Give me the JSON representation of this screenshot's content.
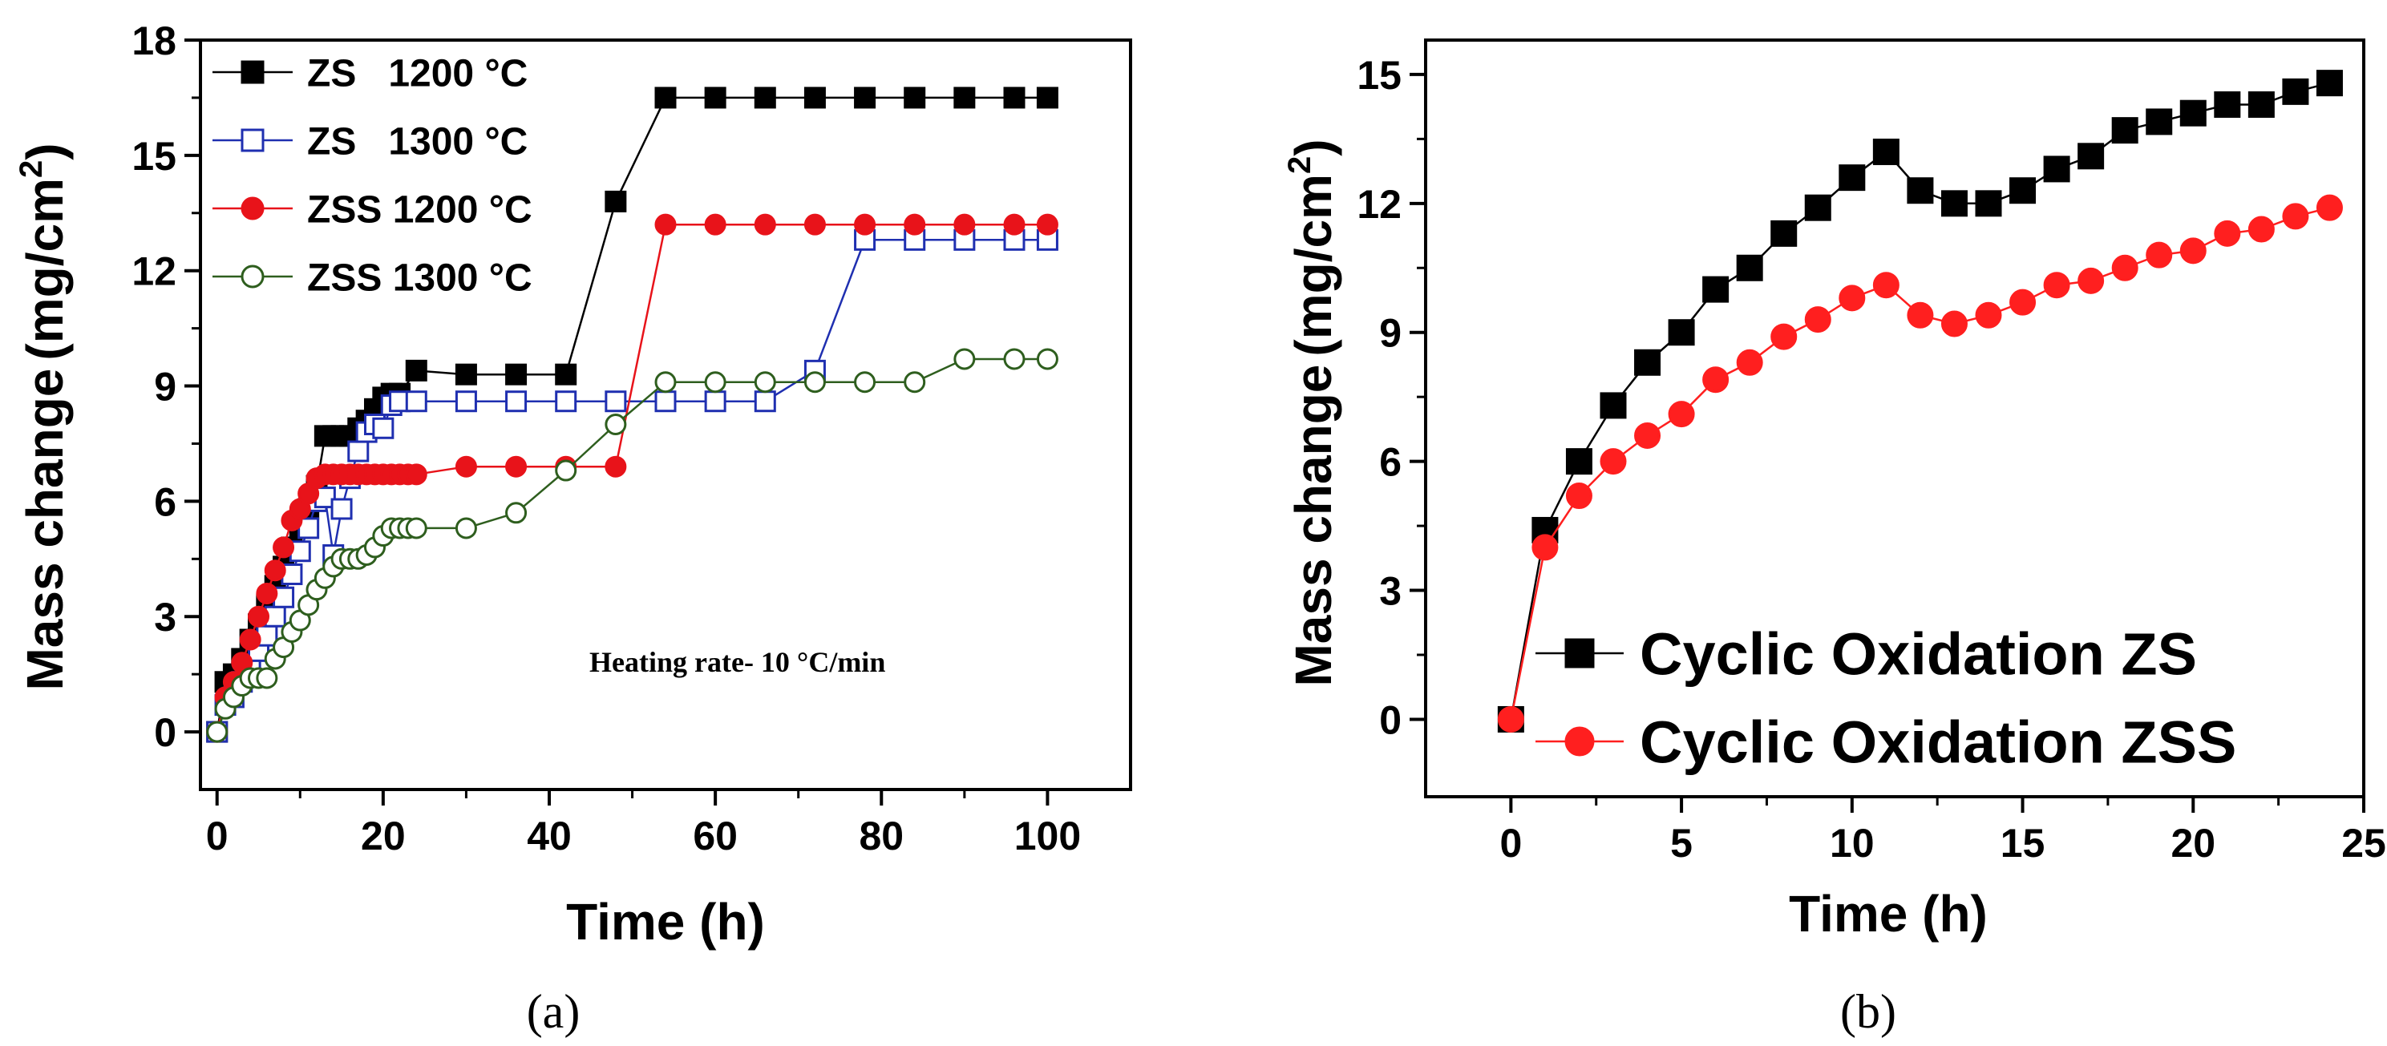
{
  "chart_data": [
    {
      "type": "line",
      "panel_label": "(a)",
      "xlabel": "Time (h)",
      "ylabel_main": "Mass change",
      "ylabel_unit": "(mg/cm",
      "ylabel_sup": "2",
      "ylabel_close": ")",
      "xlim": [
        -2,
        110
      ],
      "ylim": [
        -1.5,
        18
      ],
      "xticks": [
        0,
        20,
        40,
        60,
        80,
        100
      ],
      "yticks": [
        0,
        3,
        6,
        9,
        12,
        15,
        18
      ],
      "annotation": "Heating rate- 10 °C/min",
      "legend_position": "top-left",
      "series": [
        {
          "name": "ZS   1200 °C",
          "color": "#000000",
          "marker": "square-filled",
          "x": [
            0,
            1,
            2,
            3,
            4,
            5,
            6,
            7,
            8,
            9,
            10,
            11,
            12,
            13,
            14,
            15,
            16,
            17,
            18,
            19,
            20,
            21,
            22,
            24,
            30,
            36,
            42,
            48,
            54,
            60,
            66,
            72,
            78,
            84,
            90,
            96,
            100
          ],
          "y": [
            0,
            1.3,
            1.5,
            1.9,
            2.4,
            2.8,
            3.3,
            3.8,
            4.3,
            4.8,
            5.3,
            5.8,
            6.4,
            7.7,
            7.7,
            7.7,
            7.7,
            7.9,
            8.1,
            8.4,
            8.7,
            8.8,
            8.8,
            9.4,
            9.3,
            9.3,
            9.3,
            13.8,
            16.5,
            16.5,
            16.5,
            16.5,
            16.5,
            16.5,
            16.5,
            16.5,
            16.5
          ]
        },
        {
          "name": "ZS   1300 °C",
          "color": "#1f2fb0",
          "marker": "square-open",
          "x": [
            0,
            1,
            2,
            3,
            4,
            5,
            6,
            7,
            8,
            9,
            10,
            11,
            12,
            13,
            14,
            15,
            16,
            17,
            18,
            19,
            20,
            21,
            22,
            24,
            30,
            36,
            42,
            48,
            54,
            60,
            66,
            72,
            78,
            84,
            90,
            96,
            100
          ],
          "y": [
            0,
            0.7,
            0.9,
            1.3,
            1.7,
            2.1,
            2.5,
            3.0,
            3.5,
            4.1,
            4.7,
            5.3,
            6.0,
            6.1,
            4.6,
            5.8,
            6.6,
            7.3,
            7.8,
            8.0,
            7.9,
            8.5,
            8.6,
            8.6,
            8.6,
            8.6,
            8.6,
            8.6,
            8.6,
            8.6,
            8.6,
            9.4,
            12.8,
            12.8,
            12.8,
            12.8,
            12.8
          ]
        },
        {
          "name": "ZSS 1200 °C",
          "color": "#e8131a",
          "marker": "circle-filled",
          "x": [
            0,
            1,
            2,
            3,
            4,
            5,
            6,
            7,
            8,
            9,
            10,
            11,
            12,
            13,
            14,
            15,
            16,
            17,
            18,
            19,
            20,
            21,
            22,
            23,
            24,
            30,
            36,
            42,
            48,
            54,
            60,
            66,
            72,
            78,
            84,
            90,
            96,
            100
          ],
          "y": [
            0,
            0.9,
            1.3,
            1.8,
            2.4,
            3.0,
            3.6,
            4.2,
            4.8,
            5.5,
            5.8,
            6.2,
            6.6,
            6.7,
            6.7,
            6.7,
            6.7,
            6.7,
            6.7,
            6.7,
            6.7,
            6.7,
            6.7,
            6.7,
            6.7,
            6.9,
            6.9,
            6.9,
            6.9,
            13.2,
            13.2,
            13.2,
            13.2,
            13.2,
            13.2,
            13.2,
            13.2,
            13.2
          ]
        },
        {
          "name": "ZSS 1300 °C",
          "color": "#2e5e1e",
          "marker": "circle-open",
          "x": [
            0,
            1,
            2,
            3,
            4,
            5,
            6,
            7,
            8,
            9,
            10,
            11,
            12,
            13,
            14,
            15,
            16,
            17,
            18,
            19,
            20,
            21,
            22,
            23,
            24,
            30,
            36,
            42,
            48,
            54,
            60,
            66,
            72,
            78,
            84,
            90,
            96,
            100
          ],
          "y": [
            0,
            0.6,
            0.9,
            1.2,
            1.4,
            1.4,
            1.4,
            1.9,
            2.2,
            2.6,
            2.9,
            3.3,
            3.7,
            4.0,
            4.3,
            4.5,
            4.5,
            4.5,
            4.6,
            4.8,
            5.1,
            5.3,
            5.3,
            5.3,
            5.3,
            5.3,
            5.7,
            6.8,
            8.0,
            9.1,
            9.1,
            9.1,
            9.1,
            9.1,
            9.1,
            9.7,
            9.7,
            9.7
          ]
        }
      ]
    },
    {
      "type": "line",
      "panel_label": "(b)",
      "xlabel": "Time (h)",
      "ylabel_main": "Mass change",
      "ylabel_unit": "(mg/cm",
      "ylabel_sup": "2",
      "ylabel_close": ")",
      "xlim": [
        -2.5,
        25
      ],
      "ylim": [
        -1.8,
        15.8
      ],
      "xticks": [
        0,
        5,
        10,
        15,
        20,
        25
      ],
      "yticks": [
        0,
        3,
        6,
        9,
        12,
        15
      ],
      "legend_position": "bottom-right",
      "series": [
        {
          "name": "Cyclic Oxidation ZS",
          "color": "#000000",
          "marker": "square-filled",
          "x": [
            0,
            1,
            2,
            3,
            4,
            5,
            6,
            7,
            8,
            9,
            10,
            11,
            12,
            13,
            14,
            15,
            16,
            17,
            18,
            19,
            20,
            21,
            22,
            23,
            24
          ],
          "y": [
            0,
            4.4,
            6.0,
            7.3,
            8.3,
            9.0,
            10.0,
            10.5,
            11.3,
            11.9,
            12.6,
            13.2,
            12.3,
            12.0,
            12.0,
            12.3,
            12.8,
            13.1,
            13.7,
            13.9,
            14.1,
            14.3,
            14.3,
            14.6,
            14.8
          ]
        },
        {
          "name": "Cyclic Oxidation ZSS",
          "color": "#ff1f1f",
          "marker": "circle-filled",
          "x": [
            0,
            1,
            2,
            3,
            4,
            5,
            6,
            7,
            8,
            9,
            10,
            11,
            12,
            13,
            14,
            15,
            16,
            17,
            18,
            19,
            20,
            21,
            22,
            23,
            24
          ],
          "y": [
            0,
            4.0,
            5.2,
            6.0,
            6.6,
            7.1,
            7.9,
            8.3,
            8.9,
            9.3,
            9.8,
            10.1,
            9.4,
            9.2,
            9.4,
            9.7,
            10.1,
            10.2,
            10.5,
            10.8,
            10.9,
            11.3,
            11.4,
            11.7,
            11.9
          ]
        }
      ]
    }
  ]
}
